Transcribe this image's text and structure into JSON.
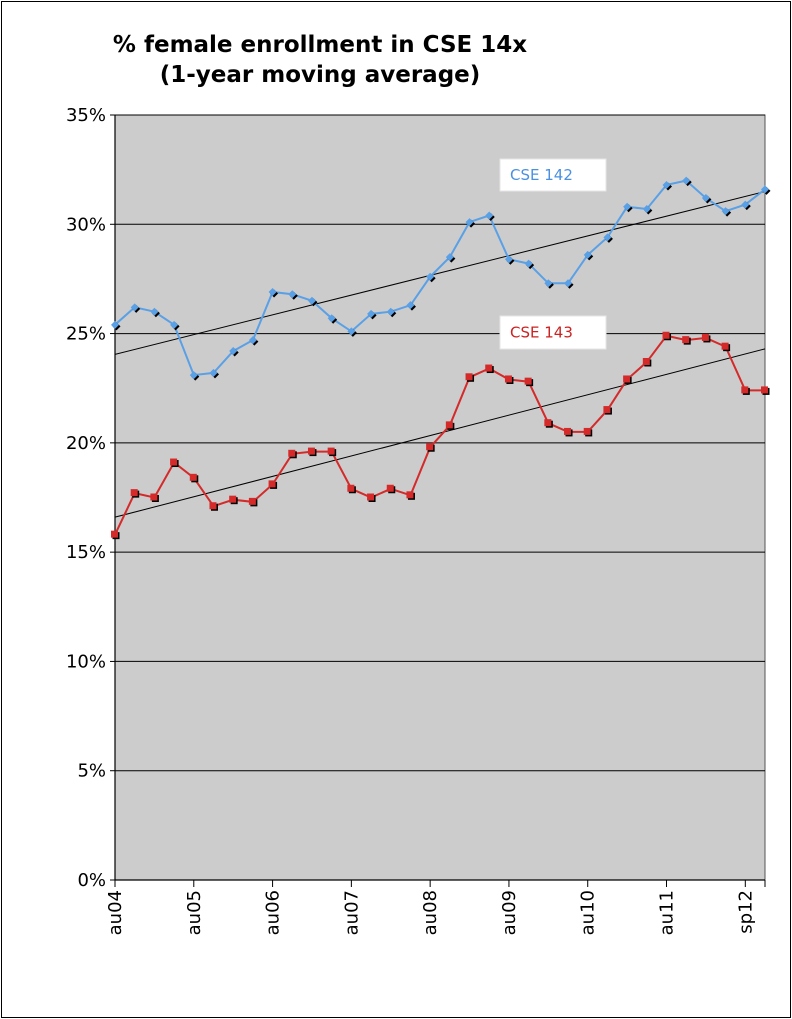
{
  "chart_data": {
    "type": "line",
    "title_line1": "% female enrollment in CSE 14x",
    "title_line2": "(1-year moving average)",
    "xlabel": "",
    "ylabel": "",
    "ylim": [
      0,
      35
    ],
    "y_ticks": [
      "0%",
      "5%",
      "10%",
      "15%",
      "20%",
      "25%",
      "30%",
      "35%"
    ],
    "y_tick_values": [
      0,
      5,
      10,
      15,
      20,
      25,
      30,
      35
    ],
    "x_tick_labels": [
      "au04",
      "au05",
      "au06",
      "au07",
      "au08",
      "au09",
      "au10",
      "au11",
      "sp12"
    ],
    "x_tick_indices": [
      0,
      4,
      8,
      12,
      16,
      20,
      24,
      28,
      32
    ],
    "x_count": 34,
    "grid": true,
    "background": "#cccccc",
    "series": [
      {
        "name": "CSE 142",
        "color": "#5aa0e6",
        "label_color": "#4a90e2",
        "values": [
          25.4,
          26.2,
          26.0,
          25.4,
          23.1,
          23.2,
          24.2,
          24.7,
          26.9,
          26.8,
          26.5,
          25.7,
          25.1,
          25.9,
          26.0,
          26.3,
          27.6,
          28.5,
          30.1,
          30.4,
          28.4,
          28.2,
          27.3,
          27.3,
          28.6,
          29.4,
          30.8,
          30.7,
          31.8,
          32.0,
          31.2,
          30.6,
          30.9,
          31.6
        ],
        "trend": [
          24.05,
          31.5
        ]
      },
      {
        "name": "CSE 143",
        "color": "#d42a2a",
        "label_color": "#cc2222",
        "values": [
          15.8,
          17.7,
          17.5,
          19.1,
          18.4,
          17.1,
          17.4,
          17.3,
          18.1,
          19.5,
          19.6,
          19.6,
          17.9,
          17.5,
          17.9,
          17.6,
          19.8,
          20.8,
          23.0,
          23.4,
          22.9,
          22.8,
          20.9,
          20.5,
          20.5,
          21.5,
          22.9,
          23.7,
          24.9,
          24.7,
          24.8,
          24.4,
          22.4,
          22.4
        ],
        "trend": [
          16.6,
          24.3
        ]
      }
    ]
  }
}
